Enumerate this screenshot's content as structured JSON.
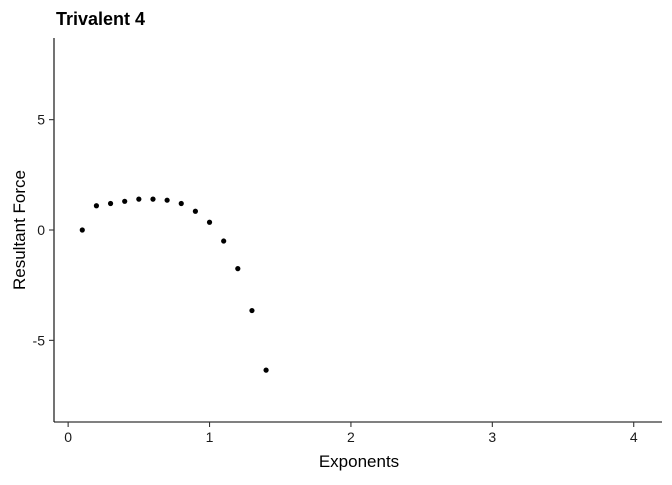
{
  "chart_data": {
    "type": "scatter",
    "title": "Trivalent 4",
    "xlabel": "Exponents",
    "ylabel": "Resultant Force",
    "xlim": [
      -0.1,
      4.2
    ],
    "ylim": [
      -8.7,
      8.7
    ],
    "x_ticks": [
      0,
      1,
      2,
      3,
      4
    ],
    "y_ticks": [
      -5,
      0,
      5
    ],
    "x_tick_labels": [
      "0",
      "1",
      "2",
      "3",
      "4"
    ],
    "y_tick_labels": [
      "-5",
      "0",
      "5"
    ],
    "grid": false,
    "legend": "none",
    "point_color": "#000000",
    "points": [
      {
        "x": 0.1,
        "y": 0.0
      },
      {
        "x": 0.2,
        "y": 1.1
      },
      {
        "x": 0.3,
        "y": 1.2
      },
      {
        "x": 0.4,
        "y": 1.3
      },
      {
        "x": 0.5,
        "y": 1.4
      },
      {
        "x": 0.6,
        "y": 1.4
      },
      {
        "x": 0.7,
        "y": 1.35
      },
      {
        "x": 0.8,
        "y": 1.2
      },
      {
        "x": 0.9,
        "y": 0.85
      },
      {
        "x": 1.0,
        "y": 0.35
      },
      {
        "x": 1.1,
        "y": -0.5
      },
      {
        "x": 1.2,
        "y": -1.75
      },
      {
        "x": 1.3,
        "y": -3.65
      },
      {
        "x": 1.4,
        "y": -6.35
      }
    ]
  }
}
